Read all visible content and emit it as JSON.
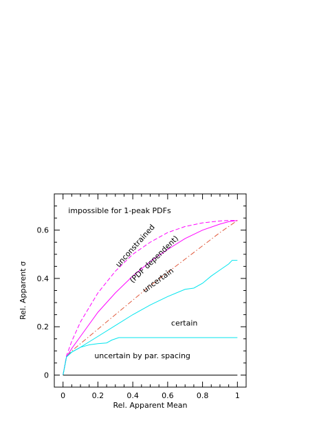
{
  "chart_data": {
    "type": "line",
    "xlabel": "Rel. Apparent Mean",
    "ylabel": "Rel. Apparent σ",
    "xlim": [
      -0.05,
      1.05
    ],
    "ylim": [
      -0.05,
      0.75
    ],
    "x_ticks": [
      0,
      0.2,
      0.4,
      0.6,
      0.8,
      1
    ],
    "x_tick_labels": [
      "0",
      "0.2",
      "0.4",
      "0.6",
      "0.8",
      "1"
    ],
    "y_ticks": [
      0,
      0.2,
      0.4,
      0.6
    ],
    "y_tick_labels": [
      "0",
      "0.2",
      "0.4",
      "0.6"
    ],
    "grid": false,
    "annotations": [
      {
        "text": "impossible for 1-peak PDFs",
        "x": 0.03,
        "y": 0.67,
        "rotation": 0
      },
      {
        "text": "unconstrained",
        "x": 0.32,
        "y": 0.445,
        "rotation": -48
      },
      {
        "text": "(PDF dependent)",
        "x": 0.4,
        "y": 0.38,
        "rotation": -44
      },
      {
        "text": "uncertain",
        "x": 0.47,
        "y": 0.34,
        "rotation": -36
      },
      {
        "text": "certain",
        "x": 0.62,
        "y": 0.205,
        "rotation": 0
      },
      {
        "text": "uncertain by par. spacing",
        "x": 0.18,
        "y": 0.07,
        "rotation": 0
      }
    ],
    "series": [
      {
        "color": "#ff00ff",
        "style": "dashed",
        "x": [
          0,
          0.02,
          0.05,
          0.1,
          0.15,
          0.2,
          0.3,
          0.4,
          0.5,
          0.6,
          0.7,
          0.8,
          0.9,
          0.95,
          1.0
        ],
        "y": [
          0,
          0.08,
          0.14,
          0.22,
          0.28,
          0.34,
          0.43,
          0.5,
          0.55,
          0.59,
          0.615,
          0.63,
          0.638,
          0.64,
          0.64
        ]
      },
      {
        "color": "#ff00ff",
        "style": "solid",
        "x": [
          0,
          0.02,
          0.05,
          0.1,
          0.2,
          0.3,
          0.4,
          0.5,
          0.6,
          0.7,
          0.8,
          0.9,
          0.95,
          1.0
        ],
        "y": [
          0,
          0.075,
          0.11,
          0.16,
          0.26,
          0.34,
          0.41,
          0.47,
          0.52,
          0.565,
          0.6,
          0.625,
          0.635,
          0.64
        ]
      },
      {
        "color": "#e0583a",
        "style": "dashdot",
        "x": [
          0,
          0.02,
          0.05,
          0.1,
          0.2,
          0.3,
          0.4,
          0.5,
          0.6,
          0.7,
          0.8,
          0.9,
          1.0
        ],
        "y": [
          0,
          0.075,
          0.1,
          0.13,
          0.19,
          0.25,
          0.31,
          0.37,
          0.425,
          0.48,
          0.535,
          0.59,
          0.64
        ]
      },
      {
        "color": "#00e5ee",
        "style": "solid",
        "x": [
          0,
          0.02,
          0.05,
          0.1,
          0.2,
          0.3,
          0.4,
          0.5,
          0.6,
          0.7,
          0.75,
          0.8,
          0.85,
          0.9,
          0.95,
          0.97,
          1.0
        ],
        "y": [
          0,
          0.075,
          0.095,
          0.115,
          0.16,
          0.205,
          0.25,
          0.29,
          0.325,
          0.355,
          0.36,
          0.38,
          0.41,
          0.435,
          0.46,
          0.475,
          0.475
        ]
      },
      {
        "color": "#00e5ee",
        "style": "solid",
        "x": [
          0,
          0.02,
          0.05,
          0.1,
          0.15,
          0.2,
          0.25,
          0.28,
          0.32,
          0.4,
          0.5,
          0.6,
          0.7,
          0.8,
          0.9,
          1.0
        ],
        "y": [
          0,
          0.075,
          0.095,
          0.115,
          0.125,
          0.13,
          0.133,
          0.145,
          0.155,
          0.155,
          0.155,
          0.155,
          0.155,
          0.155,
          0.155,
          0.155
        ]
      },
      {
        "color": "#000000",
        "style": "solid",
        "x": [
          0,
          1.0
        ],
        "y": [
          0,
          0
        ]
      }
    ]
  }
}
